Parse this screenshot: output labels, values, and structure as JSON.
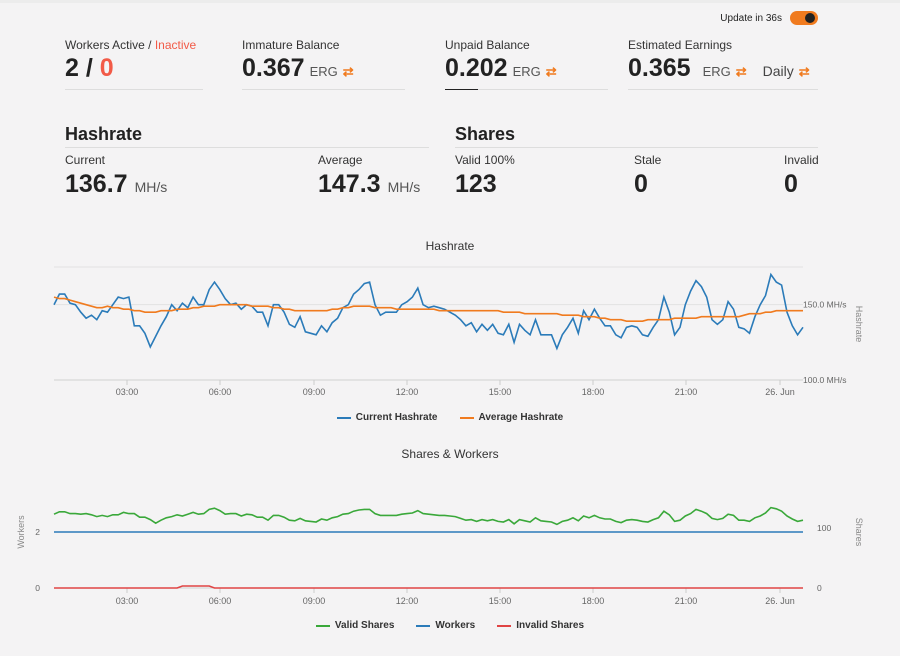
{
  "update": {
    "label": "Update in 36s"
  },
  "stats": {
    "workers": {
      "label_active": "Workers Active",
      "sep": " / ",
      "label_inactive": "Inactive",
      "active": "2",
      "slash": " / ",
      "inactive": "0"
    },
    "immature": {
      "label": "Immature Balance",
      "value": "0.367",
      "unit": "ERG"
    },
    "unpaid": {
      "label": "Unpaid Balance",
      "value": "0.202",
      "unit": "ERG"
    },
    "estimated": {
      "label": "Estimated Earnings",
      "value": "0.365",
      "unit": "ERG",
      "period": "Daily"
    }
  },
  "hashrate": {
    "title": "Hashrate",
    "current_label": "Current",
    "current_value": "136.7",
    "current_unit": "MH/s",
    "average_label": "Average",
    "average_value": "147.3",
    "average_unit": "MH/s"
  },
  "shares": {
    "title": "Shares",
    "valid_label": "Valid 100%",
    "valid_value": "123",
    "stale_label": "Stale",
    "stale_value": "0",
    "invalid_label": "Invalid",
    "invalid_value": "0"
  },
  "colors": {
    "current": "#2b7bb9",
    "average": "#f07b1f",
    "valid": "#3aa83a",
    "workers": "#2b7bb9",
    "invalid": "#e04444",
    "accent": "#f07b1f"
  },
  "chart_data": [
    {
      "type": "line",
      "title": "Hashrate",
      "ylabel": "Hashrate",
      "x_tick_labels": [
        "03:00",
        "06:00",
        "09:00",
        "12:00",
        "15:00",
        "18:00",
        "21:00",
        "26. Jun"
      ],
      "y_tick_labels": [
        "100.0 MH/s",
        "150.0 MH/s"
      ],
      "ylim": [
        100,
        175
      ],
      "legend": "bottom",
      "series": [
        {
          "name": "Current Hashrate",
          "values": [
            150,
            157,
            157,
            151,
            150,
            145,
            141,
            143,
            140,
            146,
            145,
            150,
            155,
            154,
            155,
            136,
            136,
            131,
            122,
            129,
            136,
            142,
            150,
            146,
            151,
            148,
            155,
            150,
            150,
            160,
            165,
            160,
            154,
            150,
            151,
            147,
            150,
            149,
            145,
            145,
            136,
            150,
            150,
            145,
            137,
            135,
            142,
            132,
            131,
            130,
            136,
            132,
            138,
            141,
            148,
            150,
            157,
            160,
            164,
            165,
            150,
            143,
            145,
            145,
            145,
            150,
            152,
            155,
            161,
            150,
            148,
            149,
            148,
            147,
            145,
            143,
            140,
            136,
            138,
            132,
            137,
            133,
            137,
            131,
            130,
            137,
            125,
            137,
            133,
            130,
            140,
            130,
            130,
            130,
            121,
            130,
            135,
            141,
            131,
            146,
            140,
            147,
            141,
            136,
            136,
            130,
            128,
            135,
            136,
            135,
            130,
            129,
            135,
            140,
            155,
            145,
            130,
            135,
            150,
            159,
            166,
            162,
            155,
            140,
            137,
            140,
            152,
            147,
            135,
            134,
            131,
            142,
            150,
            156,
            170,
            165,
            163,
            145,
            136,
            130,
            135
          ]
        },
        {
          "name": "Average Hashrate",
          "values": [
            155,
            154,
            154,
            153,
            152,
            151,
            150,
            149,
            148,
            148,
            149,
            148,
            148,
            147,
            147,
            146,
            146,
            145,
            145,
            145,
            146,
            146,
            146,
            147,
            147,
            147,
            148,
            148,
            149,
            149,
            149,
            150,
            150,
            150,
            150,
            150,
            150,
            149,
            149,
            149,
            149,
            148,
            148,
            147,
            147,
            146,
            146,
            146,
            146,
            146,
            146,
            146,
            147,
            147,
            148,
            148,
            149,
            149,
            149,
            149,
            148,
            148,
            148,
            148,
            147,
            147,
            147,
            147,
            147,
            147,
            147,
            147,
            146,
            146,
            146,
            146,
            146,
            146,
            146,
            146,
            146,
            146,
            146,
            146,
            145,
            145,
            145,
            145,
            144,
            144,
            144,
            144,
            144,
            144,
            144,
            143,
            143,
            143,
            143,
            142,
            142,
            142,
            141,
            141,
            140,
            140,
            140,
            139,
            139,
            139,
            139,
            140,
            140,
            140,
            140,
            140,
            141,
            141,
            141,
            141,
            141,
            142,
            142,
            142,
            142,
            142,
            142,
            142,
            142,
            143,
            144,
            144,
            144,
            145,
            145,
            146,
            146,
            146,
            146,
            146,
            146
          ]
        }
      ]
    },
    {
      "type": "line",
      "title": "Shares & Workers",
      "ylabel_left": "Workers",
      "ylabel_right": "Shares",
      "x_tick_labels": [
        "03:00",
        "06:00",
        "09:00",
        "12:00",
        "15:00",
        "18:00",
        "21:00",
        "26. Jun"
      ],
      "y_tick_labels_left": [
        "0",
        "2"
      ],
      "y_tick_labels_right": [
        "0",
        "100"
      ],
      "legend": "bottom",
      "series": [
        {
          "name": "Valid Shares",
          "axis": "right",
          "values": [
            123,
            127,
            127,
            124,
            124,
            123,
            124,
            122,
            119,
            121,
            119,
            122,
            122,
            126,
            124,
            124,
            118,
            118,
            114,
            108,
            113,
            117,
            119,
            122,
            120,
            123,
            126,
            123,
            124,
            131,
            133,
            129,
            123,
            124,
            124,
            120,
            123,
            122,
            118,
            118,
            113,
            121,
            121,
            118,
            113,
            112,
            116,
            112,
            111,
            110,
            115,
            113,
            117,
            119,
            123,
            124,
            128,
            130,
            131,
            131,
            124,
            121,
            121,
            121,
            121,
            123,
            124,
            125,
            129,
            124,
            123,
            122,
            121,
            121,
            120,
            119,
            116,
            113,
            114,
            111,
            114,
            112,
            114,
            111,
            110,
            114,
            107,
            114,
            112,
            110,
            117,
            112,
            111,
            110,
            106,
            111,
            113,
            117,
            112,
            120,
            117,
            121,
            117,
            115,
            115,
            111,
            109,
            113,
            114,
            113,
            111,
            110,
            114,
            117,
            128,
            122,
            111,
            113,
            120,
            124,
            131,
            128,
            124,
            116,
            114,
            116,
            123,
            121,
            113,
            113,
            111,
            117,
            120,
            125,
            134,
            132,
            128,
            120,
            115,
            111,
            113
          ]
        },
        {
          "name": "Workers",
          "axis": "left",
          "values": [
            2,
            2,
            2,
            2,
            2,
            2,
            2,
            2,
            2,
            2,
            2,
            2,
            2,
            2,
            2,
            2,
            2,
            2,
            2,
            2,
            2,
            2,
            2,
            2,
            2,
            2,
            2,
            2,
            2,
            2,
            2,
            2,
            2,
            2,
            2,
            2,
            2,
            2,
            2,
            2,
            2,
            2,
            2,
            2,
            2,
            2,
            2,
            2,
            2,
            2,
            2,
            2,
            2,
            2,
            2,
            2,
            2,
            2,
            2,
            2,
            2,
            2,
            2,
            2,
            2,
            2,
            2,
            2,
            2,
            2,
            2,
            2,
            2,
            2,
            2,
            2,
            2,
            2,
            2,
            2,
            2,
            2,
            2,
            2,
            2,
            2,
            2,
            2,
            2,
            2,
            2,
            2,
            2,
            2,
            2,
            2,
            2,
            2,
            2,
            2,
            2,
            2,
            2,
            2,
            2,
            2,
            2,
            2,
            2,
            2,
            2,
            2,
            2,
            2,
            2,
            2,
            2,
            2,
            2,
            2,
            2,
            2,
            2,
            2,
            2,
            2,
            2,
            2,
            2,
            2,
            2,
            2,
            2,
            2,
            2,
            2,
            2,
            2,
            2,
            2,
            2
          ]
        },
        {
          "name": "Invalid Shares",
          "axis": "right",
          "values": [
            0,
            0,
            0,
            0,
            0,
            0,
            0,
            0,
            0,
            0,
            0,
            0,
            0,
            0,
            0,
            0,
            0,
            0,
            0,
            0,
            0,
            0,
            0,
            0,
            1,
            1,
            1,
            1,
            1,
            1,
            0,
            0,
            0,
            0,
            0,
            0,
            0,
            0,
            0,
            0,
            0,
            0,
            0,
            0,
            0,
            0,
            0,
            0,
            0,
            0,
            0,
            0,
            0,
            0,
            0,
            0,
            0,
            0,
            0,
            0,
            0,
            0,
            0,
            0,
            0,
            0,
            0,
            0,
            0,
            0,
            0,
            0,
            0,
            0,
            0,
            0,
            0,
            0,
            0,
            0,
            0,
            0,
            0,
            0,
            0,
            0,
            0,
            0,
            0,
            0,
            0,
            0,
            0,
            0,
            0,
            0,
            0,
            0,
            0,
            0,
            0,
            0,
            0,
            0,
            0,
            0,
            0,
            0,
            0,
            0,
            0,
            0,
            0,
            0,
            0,
            0,
            0,
            0,
            0,
            0,
            0,
            0,
            0,
            0,
            0,
            0,
            0,
            0,
            0,
            0,
            0,
            0,
            0,
            0,
            0,
            0,
            0,
            0,
            0,
            0,
            0
          ]
        }
      ]
    }
  ]
}
